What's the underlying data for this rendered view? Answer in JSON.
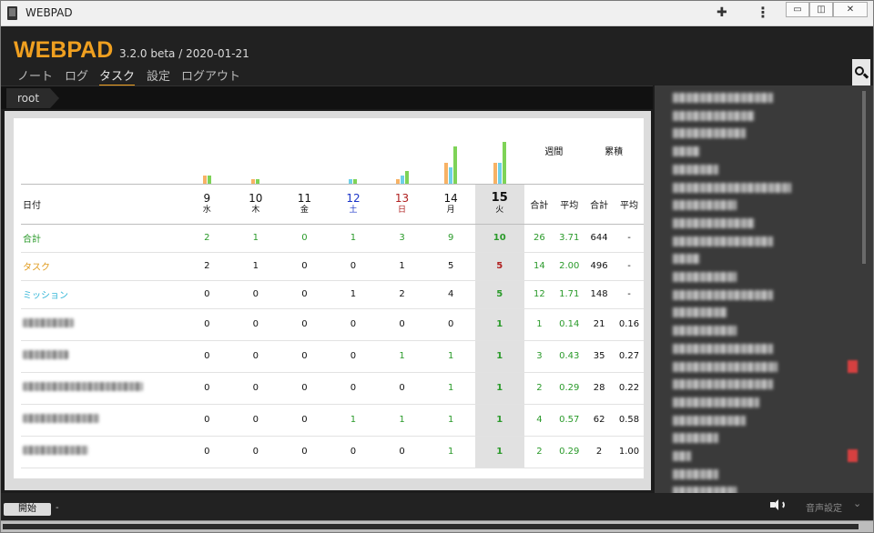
{
  "window": {
    "title": "WEBPAD",
    "min": "▭",
    "max": "◫",
    "close": "✕"
  },
  "header": {
    "logo": "WEBPAD",
    "version": "3.2.0 beta / 2020-01-21",
    "nav": [
      "ノート",
      "ログ",
      "タスク",
      "設定",
      "ログアウト"
    ],
    "active_nav": "タスク"
  },
  "breadcrumb": "root",
  "table": {
    "group_headers": {
      "weekly": "週間",
      "cumulative": "累積"
    },
    "date_label": "日付",
    "days": [
      {
        "d": "9",
        "w": "水",
        "cls": ""
      },
      {
        "d": "10",
        "w": "木",
        "cls": ""
      },
      {
        "d": "11",
        "w": "金",
        "cls": ""
      },
      {
        "d": "12",
        "w": "土",
        "cls": "blue"
      },
      {
        "d": "13",
        "w": "日",
        "cls": "red"
      },
      {
        "d": "14",
        "w": "月",
        "cls": ""
      },
      {
        "d": "15",
        "w": "火",
        "cls": "today"
      }
    ],
    "sub_headers": [
      "合計",
      "平均",
      "合計",
      "平均"
    ],
    "bars": [
      {
        "orange": 2,
        "cyan": 0,
        "green": 2
      },
      {
        "orange": 1,
        "cyan": 0,
        "green": 1
      },
      {
        "orange": 0,
        "cyan": 0,
        "green": 0
      },
      {
        "orange": 0,
        "cyan": 1,
        "green": 1
      },
      {
        "orange": 1,
        "cyan": 2,
        "green": 3
      },
      {
        "orange": 5,
        "cyan": 4,
        "green": 9
      },
      {
        "orange": 5,
        "cyan": 5,
        "green": 10
      }
    ],
    "summary_rows": [
      {
        "label": "合計",
        "color": "green",
        "days": [
          "2",
          "1",
          "0",
          "1",
          "3",
          "9",
          "10"
        ],
        "week_total": "26",
        "week_avg": "3.71",
        "cum_total": "644",
        "cum_avg": "-"
      },
      {
        "label": "タスク",
        "color": "orange",
        "days": [
          "2",
          "1",
          "0",
          "0",
          "1",
          "5",
          "5"
        ],
        "week_total": "14",
        "week_avg": "2.00",
        "cum_total": "496",
        "cum_avg": "-"
      },
      {
        "label": "ミッション",
        "color": "cyan",
        "days": [
          "0",
          "0",
          "0",
          "1",
          "2",
          "4",
          "5"
        ],
        "week_total": "12",
        "week_avg": "1.71",
        "cum_total": "148",
        "cum_avg": "-"
      }
    ],
    "item_rows": [
      {
        "label_width": 56,
        "days": [
          "0",
          "0",
          "0",
          "0",
          "0",
          "0",
          "1"
        ],
        "week_total": "1",
        "week_avg": "0.14",
        "cum_total": "21",
        "cum_avg": "0.16"
      },
      {
        "label_width": 50,
        "days": [
          "0",
          "0",
          "0",
          "0",
          "1",
          "1",
          "1"
        ],
        "week_total": "3",
        "week_avg": "0.43",
        "cum_total": "35",
        "cum_avg": "0.27"
      },
      {
        "label_width": 132,
        "days": [
          "0",
          "0",
          "0",
          "0",
          "0",
          "1",
          "1"
        ],
        "week_total": "2",
        "week_avg": "0.29",
        "cum_total": "28",
        "cum_avg": "0.22"
      },
      {
        "label_width": 84,
        "days": [
          "0",
          "0",
          "0",
          "1",
          "1",
          "1",
          "1"
        ],
        "week_total": "4",
        "week_avg": "0.57",
        "cum_total": "62",
        "cum_avg": "0.58"
      },
      {
        "label_width": 72,
        "days": [
          "0",
          "0",
          "0",
          "0",
          "0",
          "1",
          "1"
        ],
        "week_total": "2",
        "week_avg": "0.29",
        "cum_total": "2",
        "cum_avg": "1.00"
      }
    ]
  },
  "sidebar": {
    "items": [
      110,
      90,
      80,
      30,
      50,
      130,
      70,
      90,
      110,
      30,
      70,
      110,
      60,
      70,
      110,
      115,
      110,
      95,
      80,
      50,
      20,
      50,
      70
    ]
  },
  "footer": {
    "start": "開始",
    "dash": "-",
    "voice": "音声設定"
  },
  "colors": {
    "accent": "#f0a020",
    "green": "#2a9a2a",
    "orange": "#e09b1e",
    "cyan": "#2fb4d6",
    "bar_green": "#7ed357",
    "bar_orange": "#f7b265",
    "bar_cyan": "#6fd0e8"
  }
}
